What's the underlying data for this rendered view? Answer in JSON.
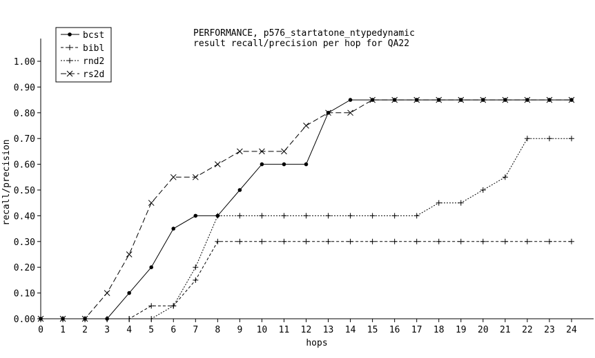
{
  "chart_data": {
    "type": "line",
    "title": "PERFORMANCE, p576_startatone_ntypedynamic",
    "subtitle": "result recall/precision per hop for QA22",
    "xlabel": "hops",
    "ylabel": "recall/precision",
    "xlim": [
      0,
      24
    ],
    "ylim": [
      0,
      1.0
    ],
    "x": [
      0,
      1,
      2,
      3,
      4,
      5,
      6,
      7,
      8,
      9,
      10,
      11,
      12,
      13,
      14,
      15,
      16,
      17,
      18,
      19,
      20,
      21,
      22,
      23,
      24
    ],
    "xticks": [
      "0",
      "1",
      "2",
      "3",
      "4",
      "5",
      "6",
      "7",
      "8",
      "9",
      "10",
      "11",
      "12",
      "13",
      "14",
      "15",
      "16",
      "17",
      "18",
      "19",
      "20",
      "21",
      "22",
      "23",
      "24"
    ],
    "yticks": [
      "0.00",
      "0.10",
      "0.20",
      "0.30",
      "0.40",
      "0.50",
      "0.60",
      "0.70",
      "0.80",
      "0.90",
      "1.00"
    ],
    "grid": false,
    "legend_position": "top-left",
    "series": [
      {
        "name": "bcst",
        "marker": "dot",
        "dash": "solid",
        "values": [
          0,
          0,
          0,
          0,
          0.1,
          0.2,
          0.35,
          0.4,
          0.4,
          0.5,
          0.6,
          0.6,
          0.6,
          0.8,
          0.85,
          0.85,
          0.85,
          0.85,
          0.85,
          0.85,
          0.85,
          0.85,
          0.85,
          0.85,
          0.85
        ]
      },
      {
        "name": "bibl",
        "marker": "plus",
        "dash": "dashed",
        "values": [
          0,
          0,
          0,
          0,
          0,
          0.05,
          0.05,
          0.15,
          0.3,
          0.3,
          0.3,
          0.3,
          0.3,
          0.3,
          0.3,
          0.3,
          0.3,
          0.3,
          0.3,
          0.3,
          0.3,
          0.3,
          0.3,
          0.3,
          0.3
        ]
      },
      {
        "name": "rnd2",
        "marker": "plus",
        "dash": "dotted",
        "values": [
          0,
          0,
          0,
          0,
          0,
          0,
          0.05,
          0.2,
          0.4,
          0.4,
          0.4,
          0.4,
          0.4,
          0.4,
          0.4,
          0.4,
          0.4,
          0.4,
          0.45,
          0.45,
          0.5,
          0.55,
          0.7,
          0.7,
          0.7
        ]
      },
      {
        "name": "rs2d",
        "marker": "cross",
        "dash": "longdash",
        "values": [
          0,
          0,
          0,
          0.1,
          0.25,
          0.45,
          0.55,
          0.55,
          0.6,
          0.65,
          0.65,
          0.65,
          0.75,
          0.8,
          0.8,
          0.85,
          0.85,
          0.85,
          0.85,
          0.85,
          0.85,
          0.85,
          0.85,
          0.85,
          0.85
        ]
      }
    ]
  }
}
